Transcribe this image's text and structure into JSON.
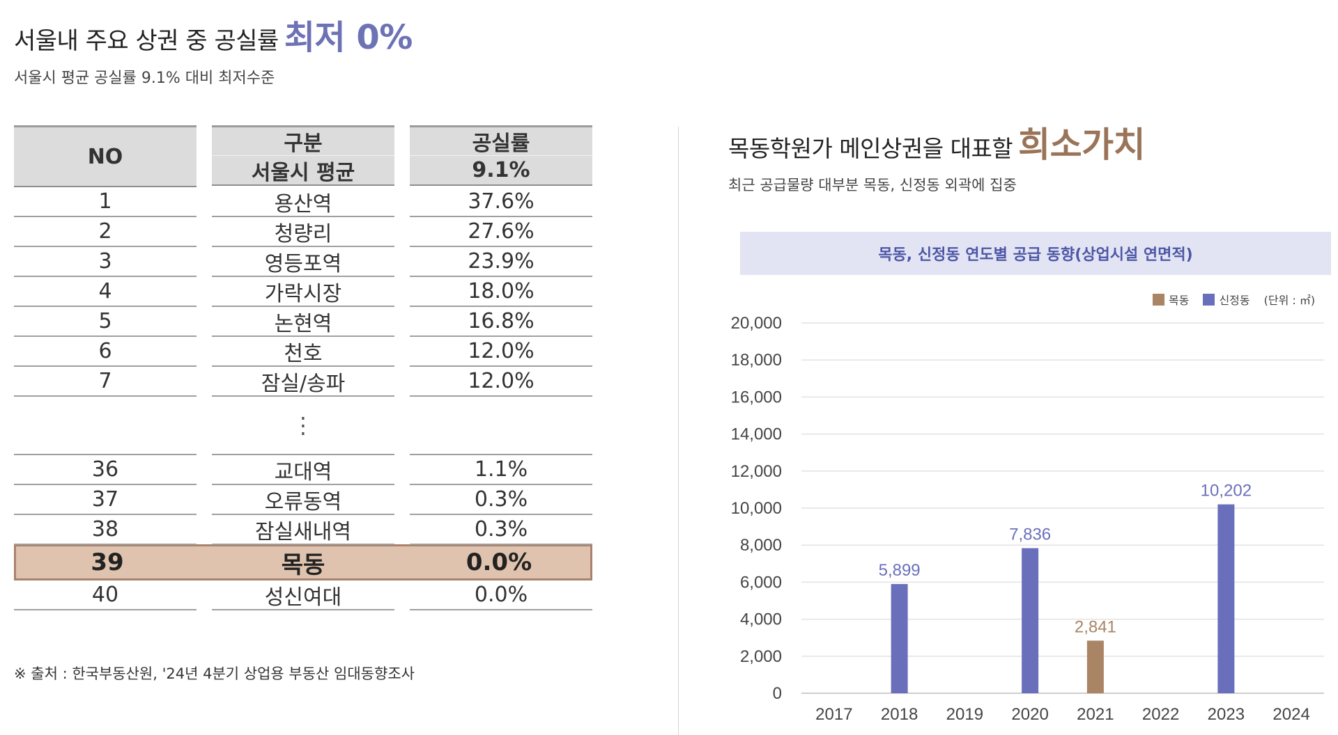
{
  "left": {
    "title": "서울내 주요 상권 중 공실률",
    "title_highlight": "최저 0%",
    "subtitle": "서울시 평균 공실률 9.1% 대비 최저수준",
    "table": {
      "header_no": "NO",
      "header_category": "구분",
      "header_rate": "공실률",
      "header_avg_name": "서울시 평균",
      "header_avg_rate": "9.1%",
      "rows_top": [
        {
          "no": "1",
          "name": "용산역",
          "rate": "37.6%"
        },
        {
          "no": "2",
          "name": "청량리",
          "rate": "27.6%"
        },
        {
          "no": "3",
          "name": "영등포역",
          "rate": "23.9%"
        },
        {
          "no": "4",
          "name": "가락시장",
          "rate": "18.0%"
        },
        {
          "no": "5",
          "name": "논현역",
          "rate": "16.8%"
        },
        {
          "no": "6",
          "name": "천호",
          "rate": "12.0%"
        },
        {
          "no": "7",
          "name": "잠실/송파",
          "rate": "12.0%"
        }
      ],
      "ellipsis": "⋮",
      "rows_bottom": [
        {
          "no": "36",
          "name": "교대역",
          "rate": "1.1%"
        },
        {
          "no": "37",
          "name": "오류동역",
          "rate": "0.3%"
        },
        {
          "no": "38",
          "name": "잠실새내역",
          "rate": "0.3%"
        }
      ],
      "highlight_row": {
        "no": "39",
        "name": "목동",
        "rate": "0.0%"
      },
      "last_row": {
        "no": "40",
        "name": "성신여대",
        "rate": "0.0%"
      }
    },
    "source": "※ 출처 : 한국부동산원, '24년 4분기 상업용 부동산 임대동향조사"
  },
  "right": {
    "title": "목동학원가 메인상권을 대표할",
    "title_highlight": "희소가치",
    "subtitle": "최근 공급물량 대부분 목동, 신정동 외곽에 집중",
    "banner": "목동, 신정동 연도별 공급 동향(상업시설 연면적)",
    "legend": {
      "mokdong": "목동",
      "sinjeong": "신정동",
      "unit": "(단위 : ㎡)"
    }
  },
  "colors": {
    "accent_blue": "#6d72b5",
    "accent_brown": "#9a7458",
    "bar_blue": "#6a6fbb",
    "bar_brown": "#a98465",
    "highlight_row": "#dfc3ae"
  },
  "chart_data": {
    "type": "bar",
    "title": "목동, 신정동 연도별 공급 동향(상업시설 연면적)",
    "categories": [
      "2017",
      "2018",
      "2019",
      "2020",
      "2021",
      "2022",
      "2023",
      "2024"
    ],
    "series": [
      {
        "name": "목동",
        "values": [
          0,
          0,
          0,
          0,
          2841,
          0,
          0,
          0
        ]
      },
      {
        "name": "신정동",
        "values": [
          0,
          5899,
          0,
          7836,
          0,
          0,
          10202,
          0
        ]
      }
    ],
    "data_labels": [
      "5,899",
      "7,836",
      "2,841",
      "10,202"
    ],
    "ylim": [
      0,
      20000
    ],
    "yticks": [
      "0",
      "2,000",
      "4,000",
      "6,000",
      "8,000",
      "10,000",
      "12,000",
      "14,000",
      "16,000",
      "18,000",
      "20,000"
    ],
    "grid": true,
    "legend_position": "top-right",
    "unit": "(단위 : ㎡)"
  }
}
